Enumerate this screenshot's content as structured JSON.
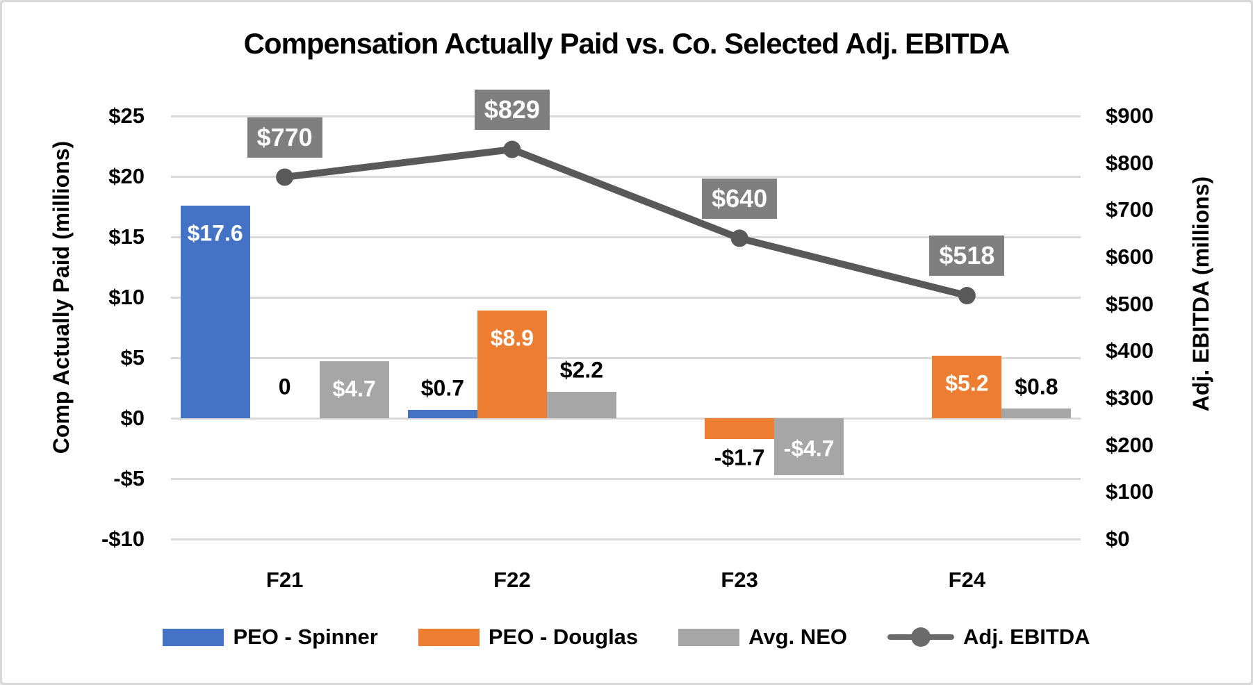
{
  "title": "Compensation Actually Paid vs. Co. Selected Adj. EBITDA",
  "chart_data": {
    "type": "combo-bar-line",
    "categories": [
      "F21",
      "F22",
      "F23",
      "F24"
    ],
    "left_axis": {
      "title": "Comp Actually Paid (millions)",
      "min": -10,
      "max": 25,
      "tick_step": 5,
      "tick_values": [
        25,
        20,
        15,
        10,
        5,
        0,
        -5,
        -10
      ],
      "tick_labels": [
        "$25",
        "$20",
        "$15",
        "$10",
        "$5",
        "$0",
        "-$5",
        "-$10"
      ]
    },
    "right_axis": {
      "title": "Adj. EBITDA (millions)",
      "min": 0,
      "max": 900,
      "tick_step": 100,
      "tick_values": [
        900,
        800,
        700,
        600,
        500,
        400,
        300,
        200,
        100,
        0
      ],
      "tick_labels": [
        "$900",
        "$800",
        "$700",
        "$600",
        "$500",
        "$400",
        "$300",
        "$200",
        "$100",
        "$0"
      ]
    },
    "grid": {
      "on": true,
      "color": "#d9d9d9"
    },
    "bar_series": [
      {
        "name": "PEO - Spinner",
        "key": "peo-spinner",
        "color": "#4472C4",
        "values": [
          17.6,
          0.7,
          null,
          null
        ],
        "labels": [
          "$17.6",
          "$0.7",
          "",
          ""
        ],
        "label_inside": [
          true,
          false,
          false,
          false
        ]
      },
      {
        "name": "PEO - Douglas",
        "key": "peo-douglas",
        "color": "#ED7D31",
        "values": [
          0,
          8.9,
          -1.7,
          5.2
        ],
        "labels": [
          "0",
          "$8.9",
          "-$1.7",
          "$5.2"
        ],
        "label_inside": [
          false,
          true,
          false,
          true
        ]
      },
      {
        "name": "Avg. NEO",
        "key": "avg-neo",
        "color": "#A6A6A6",
        "values": [
          4.7,
          2.2,
          -4.7,
          0.8
        ],
        "labels": [
          "$4.7",
          "$2.2",
          "-$4.7",
          "$0.8"
        ],
        "label_inside": [
          true,
          false,
          true,
          false
        ]
      }
    ],
    "line_series": {
      "name": "Adj. EBITDA",
      "key": "adj-ebitda",
      "color": "#595959",
      "marker": "circle",
      "values": [
        770,
        829,
        640,
        518
      ],
      "labels": [
        "$770",
        "$829",
        "$640",
        "$518"
      ],
      "label_box_color": "#7f7f7f",
      "label_text_color": "#ffffff",
      "axis": "right"
    },
    "legend": {
      "position": "bottom",
      "items": [
        {
          "label": "PEO - Spinner",
          "color": "#4472C4",
          "type": "bar"
        },
        {
          "label": "PEO - Douglas",
          "color": "#ED7D31",
          "type": "bar"
        },
        {
          "label": "Avg. NEO",
          "color": "#A6A6A6",
          "type": "bar"
        },
        {
          "label": "Adj. EBITDA",
          "color": "#595959",
          "type": "line"
        }
      ]
    }
  }
}
